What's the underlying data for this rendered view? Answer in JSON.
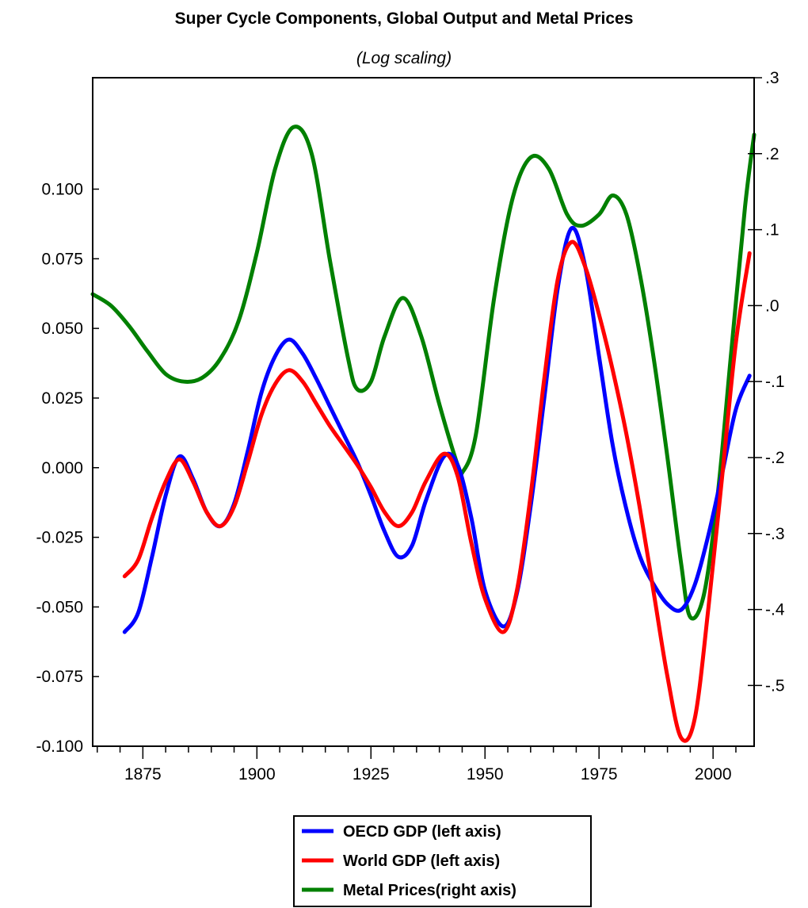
{
  "chart_data": {
    "type": "line",
    "title": "Super Cycle Components, Global Output and Metal Prices",
    "subtitle": "(Log scaling)",
    "xlabel": "",
    "ylabel": "",
    "xlim": [
      1864,
      2009
    ],
    "ylim_left": [
      -0.1,
      0.14
    ],
    "ylim_right": [
      -0.58,
      0.3
    ],
    "x_ticks": [
      1875,
      1900,
      1925,
      1950,
      1975,
      2000
    ],
    "y_left_ticks": [
      "0.100",
      "0.075",
      "0.050",
      "0.025",
      "0.000",
      "-0.025",
      "-0.050",
      "-0.075",
      "-0.100"
    ],
    "y_left_tick_values": [
      0.1,
      0.075,
      0.05,
      0.025,
      0.0,
      -0.025,
      -0.05,
      -0.075,
      -0.1
    ],
    "y_right_ticks": [
      ".3",
      ".2",
      ".1",
      ".0",
      "-.1",
      "-.2",
      "-.3",
      "-.4",
      "-.5"
    ],
    "y_right_tick_values": [
      0.3,
      0.2,
      0.1,
      0.0,
      -0.1,
      -0.2,
      -0.3,
      -0.4,
      -0.5
    ],
    "grid": false,
    "legend_position": "bottom-center",
    "series": [
      {
        "name": "OECD GDP (left axis)",
        "axis": "left",
        "color": "#0000ff",
        "x": [
          1871,
          1874,
          1877,
          1880,
          1883,
          1886,
          1889,
          1892,
          1895,
          1898,
          1901,
          1904,
          1907,
          1910,
          1913,
          1916,
          1919,
          1922,
          1925,
          1928,
          1931,
          1934,
          1937,
          1941,
          1944,
          1947,
          1950,
          1954,
          1957,
          1960,
          1963,
          1966,
          1969,
          1972,
          1975,
          1978,
          1981,
          1984,
          1987,
          1990,
          1993,
          1996,
          1999,
          2002,
          2005,
          2008
        ],
        "y": [
          -0.059,
          -0.052,
          -0.032,
          -0.01,
          0.004,
          -0.004,
          -0.016,
          -0.021,
          -0.013,
          0.006,
          0.027,
          0.04,
          0.046,
          0.041,
          0.032,
          0.022,
          0.012,
          0.002,
          -0.01,
          -0.023,
          -0.032,
          -0.028,
          -0.012,
          0.004,
          0.001,
          -0.018,
          -0.044,
          -0.057,
          -0.045,
          -0.014,
          0.025,
          0.065,
          0.086,
          0.072,
          0.04,
          0.008,
          -0.015,
          -0.032,
          -0.042,
          -0.049,
          -0.051,
          -0.042,
          -0.024,
          -0.002,
          0.021,
          0.033
        ]
      },
      {
        "name": "World GDP (left axis)",
        "axis": "left",
        "color": "#ff0000",
        "x": [
          1871,
          1874,
          1877,
          1880,
          1883,
          1886,
          1889,
          1892,
          1895,
          1898,
          1901,
          1904,
          1907,
          1910,
          1913,
          1916,
          1919,
          1922,
          1925,
          1928,
          1931,
          1934,
          1937,
          1941,
          1944,
          1947,
          1950,
          1954,
          1957,
          1960,
          1963,
          1966,
          1969,
          1972,
          1975,
          1978,
          1981,
          1984,
          1987,
          1990,
          1993,
          1996,
          1999,
          2002,
          2005,
          2008
        ],
        "y": [
          -0.039,
          -0.033,
          -0.018,
          -0.005,
          0.003,
          -0.005,
          -0.016,
          -0.021,
          -0.014,
          0.002,
          0.019,
          0.03,
          0.035,
          0.031,
          0.023,
          0.015,
          0.008,
          0.001,
          -0.007,
          -0.016,
          -0.021,
          -0.016,
          -0.005,
          0.005,
          -0.003,
          -0.027,
          -0.047,
          -0.059,
          -0.044,
          -0.01,
          0.032,
          0.068,
          0.081,
          0.072,
          0.055,
          0.035,
          0.012,
          -0.015,
          -0.045,
          -0.075,
          -0.097,
          -0.09,
          -0.05,
          -0.003,
          0.045,
          0.077
        ]
      },
      {
        "name": "Metal Prices(right axis)",
        "axis": "right",
        "color": "#008000",
        "x": [
          1864,
          1868,
          1872,
          1876,
          1880,
          1884,
          1888,
          1892,
          1896,
          1900,
          1904,
          1908,
          1912,
          1916,
          1920,
          1922,
          1925,
          1928,
          1932,
          1936,
          1940,
          1944,
          1945,
          1948,
          1952,
          1956,
          1960,
          1964,
          1968,
          1971,
          1975,
          1978,
          1981,
          1984,
          1987,
          1990,
          1993,
          1995,
          1998,
          2001,
          2004,
          2007,
          2009
        ],
        "y": [
          0.015,
          0.0,
          -0.027,
          -0.06,
          -0.09,
          -0.1,
          -0.095,
          -0.07,
          -0.02,
          0.07,
          0.18,
          0.235,
          0.2,
          0.06,
          -0.07,
          -0.11,
          -0.1,
          -0.04,
          0.01,
          -0.04,
          -0.13,
          -0.21,
          -0.22,
          -0.17,
          0.01,
          0.14,
          0.195,
          0.18,
          0.12,
          0.105,
          0.12,
          0.145,
          0.12,
          0.04,
          -0.07,
          -0.2,
          -0.34,
          -0.41,
          -0.38,
          -0.25,
          -0.06,
          0.13,
          0.225
        ]
      }
    ]
  },
  "legend": {
    "items": [
      {
        "label": "OECD GDP (left axis)",
        "color": "#0000ff"
      },
      {
        "label": "World GDP (left axis)",
        "color": "#ff0000"
      },
      {
        "label": "Metal Prices(right axis)",
        "color": "#008000"
      }
    ]
  }
}
